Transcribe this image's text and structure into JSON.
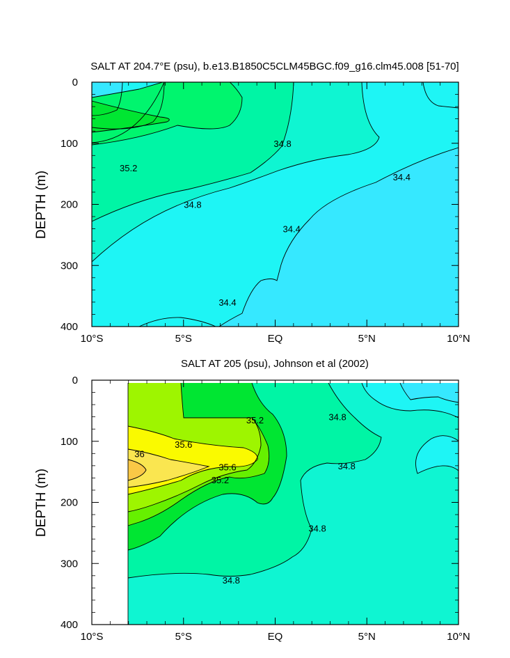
{
  "chart_data": [
    {
      "type": "contour",
      "title": "SALT AT 204.7°E (psu), b.e13.B1850C5CLM45BGC.f09_g16.clm45.008 [51-70]",
      "ylabel": "DEPTH (m)",
      "xlabel": "",
      "xlim": [
        -10,
        10
      ],
      "ylim": [
        400,
        0
      ],
      "y_reversed": true,
      "x_ticks": [
        -10,
        -5,
        0,
        5,
        10
      ],
      "x_tick_labels": [
        "10°S",
        "5°S",
        "EQ",
        "5°N",
        "10°N"
      ],
      "y_ticks": [
        0,
        100,
        200,
        300,
        400
      ],
      "y_tick_labels": [
        "0",
        "100",
        "200",
        "300",
        "400"
      ],
      "contour_interval": 0.2,
      "levels": [
        34.2,
        34.4,
        34.6,
        34.8,
        35.0,
        35.2
      ],
      "fill_colors": {
        "below_34.2": "#0fd4fa",
        "34.2-34.4": "#36e8ff",
        "34.4-34.6": "#1ef5f5",
        "34.6-34.8": "#0ff5d2",
        "34.8-35.0": "#00f5a5",
        "35.0-35.2": "#00f56e",
        "35.2-35.4": "#00e632"
      },
      "contour_labels": [
        {
          "text": "35.2",
          "x": -8.0,
          "y": 140
        },
        {
          "text": "34.8",
          "x": -4.5,
          "y": 200
        },
        {
          "text": "34.8",
          "x": 0.4,
          "y": 100
        },
        {
          "text": "34.4",
          "x": 0.9,
          "y": 240
        },
        {
          "text": "34.4",
          "x": 6.9,
          "y": 155
        },
        {
          "text": "34.4",
          "x": -2.6,
          "y": 360
        }
      ]
    },
    {
      "type": "contour",
      "title": "SALT AT 205 (psu), Johnson et al (2002)",
      "ylabel": "DEPTH (m)",
      "xlabel": "",
      "xlim": [
        -10,
        10
      ],
      "ylim": [
        400,
        0
      ],
      "y_reversed": true,
      "data_x_range": [
        -8,
        10
      ],
      "data_y_range": [
        5,
        400
      ],
      "x_ticks": [
        -10,
        -5,
        0,
        5,
        10
      ],
      "x_tick_labels": [
        "10°S",
        "5°S",
        "EQ",
        "5°N",
        "10°N"
      ],
      "y_ticks": [
        0,
        100,
        200,
        300,
        400
      ],
      "y_tick_labels": [
        "0",
        "100",
        "200",
        "300",
        "400"
      ],
      "contour_interval": 0.2,
      "levels": [
        34.4,
        34.6,
        34.8,
        35.0,
        35.2,
        35.4,
        35.6,
        35.8,
        36.0
      ],
      "fill_colors": {
        "34.2-34.4": "#36e8ff",
        "34.4-34.6": "#1ef5f5",
        "34.6-34.8": "#0ff5d2",
        "34.8-35.0": "#00f5a5",
        "35.0-35.2": "#00e632",
        "35.2-35.4": "#66f000",
        "35.4-35.6": "#9ef500",
        "35.6-35.8": "#fafa00",
        "35.8-36.0": "#fae650",
        "above_36.0": "#fac846"
      },
      "contour_labels": [
        {
          "text": "35.2",
          "x": -1.1,
          "y": 65
        },
        {
          "text": "34.8",
          "x": 3.4,
          "y": 60
        },
        {
          "text": "35.6",
          "x": -5.0,
          "y": 105
        },
        {
          "text": "36",
          "x": -7.4,
          "y": 120
        },
        {
          "text": "35.6",
          "x": -2.6,
          "y": 142
        },
        {
          "text": "35.2",
          "x": -3.0,
          "y": 163
        },
        {
          "text": "34.8",
          "x": 3.9,
          "y": 140
        },
        {
          "text": "34.8",
          "x": 2.3,
          "y": 242
        },
        {
          "text": "34.8",
          "x": -2.4,
          "y": 327
        }
      ]
    }
  ]
}
